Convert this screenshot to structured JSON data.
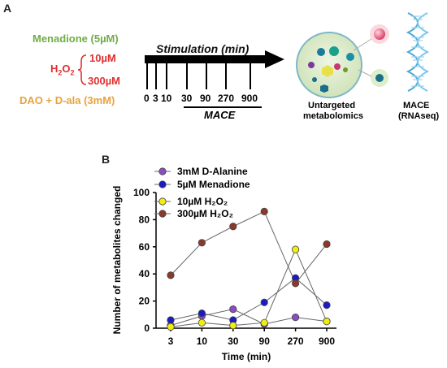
{
  "panel_a": {
    "letter": "A",
    "menadione_label": "Menadione (5µM)",
    "h2o2_label": "H",
    "h2o2_sub": "2",
    "h2o2_o": "O",
    "h2o2_sub2": "2",
    "h2o2_low": "10µM",
    "h2o2_high": "300µM",
    "dao_label": "DAO + D-ala (3mM)",
    "stimulation_label": "Stimulation  (min)",
    "timepoints": [
      "0",
      "3",
      "10",
      "30",
      "90",
      "270",
      "900"
    ],
    "mace_label": "MACE",
    "untargeted_label_1": "Untargeted",
    "untargeted_label_2": "metabolomics",
    "rnaseq_label_1": "MACE",
    "rnaseq_label_2": "(RNAseq)",
    "colors": {
      "menadione": "#70ad47",
      "h2o2": "#e03030",
      "dao": "#e8a33a",
      "bracket": "#e03030"
    }
  },
  "panel_b": {
    "letter": "B"
  },
  "chart_data": {
    "type": "line",
    "categories": [
      "3",
      "10",
      "30",
      "90",
      "270",
      "900"
    ],
    "xlabel": "Time (min)",
    "ylabel": "Number of metabolites changed",
    "ylim": [
      0,
      100
    ],
    "yticks": [
      0,
      20,
      40,
      60,
      80,
      100
    ],
    "legend_position": "top-left",
    "series": [
      {
        "name": "3mM D-Alanine",
        "color": "#8a4cc4",
        "values": [
          2,
          9,
          14,
          3,
          8,
          5
        ]
      },
      {
        "name": "5µM Menadione",
        "color": "#1a1ac8",
        "values": [
          6,
          11,
          6,
          19,
          37,
          17
        ]
      },
      {
        "name": "10µM H₂O₂",
        "color": "#eeee10",
        "values": [
          1,
          4,
          2,
          4,
          58,
          5
        ]
      },
      {
        "name": "300µM H₂O₂",
        "color": "#8b3a2a",
        "values": [
          39,
          63,
          75,
          86,
          33,
          62
        ]
      }
    ]
  }
}
